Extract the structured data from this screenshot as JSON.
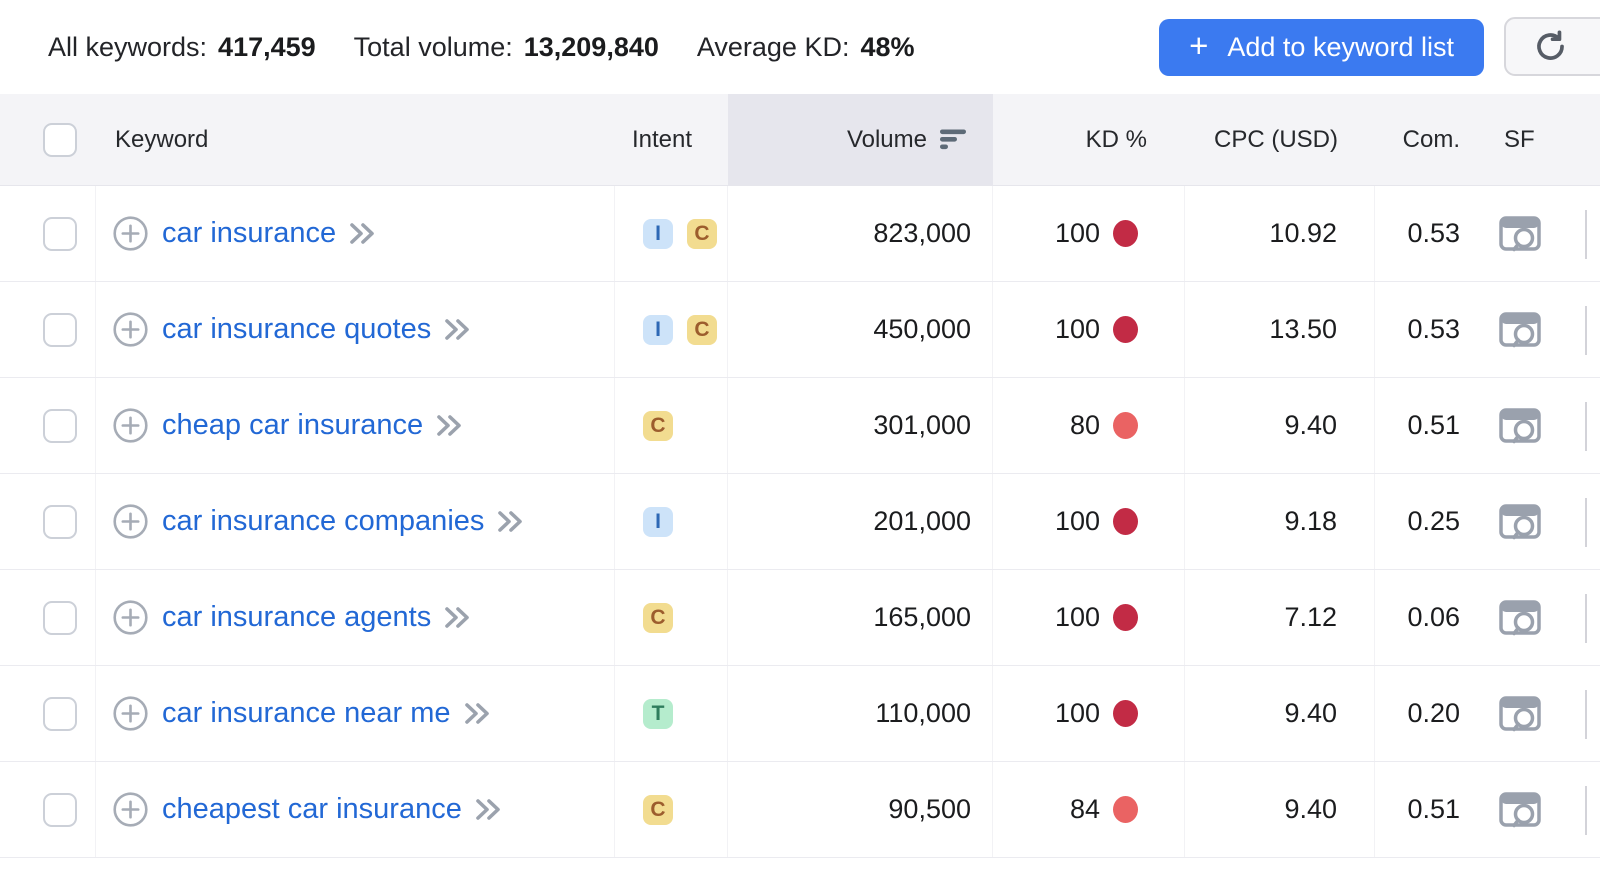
{
  "toolbar": {
    "stats": [
      {
        "label": "All keywords:",
        "value": "417,459"
      },
      {
        "label": "Total volume:",
        "value": "13,209,840"
      },
      {
        "label": "Average KD:",
        "value": "48%"
      }
    ],
    "add_button": {
      "plus": "+",
      "label": "Add to keyword list"
    },
    "refresh_button": {
      "icon": "refresh-icon"
    }
  },
  "table": {
    "columns": [
      "Keyword",
      "Intent",
      "Volume",
      "KD %",
      "CPC (USD)",
      "Com.",
      "SF"
    ],
    "sorted_column": "Volume",
    "sort_direction": "descending",
    "rows": [
      {
        "keyword": "car insurance",
        "intents": [
          "I",
          "C"
        ],
        "volume": "823,000",
        "kd": "100",
        "kd_level": "very_hard",
        "cpc": "10.92",
        "com": "0.53"
      },
      {
        "keyword": "car insurance quotes",
        "intents": [
          "I",
          "C"
        ],
        "volume": "450,000",
        "kd": "100",
        "kd_level": "very_hard",
        "cpc": "13.50",
        "com": "0.53"
      },
      {
        "keyword": "cheap car insurance",
        "intents": [
          "C"
        ],
        "volume": "301,000",
        "kd": "80",
        "kd_level": "hard",
        "cpc": "9.40",
        "com": "0.51"
      },
      {
        "keyword": "car insurance companies",
        "intents": [
          "I"
        ],
        "volume": "201,000",
        "kd": "100",
        "kd_level": "very_hard",
        "cpc": "9.18",
        "com": "0.25"
      },
      {
        "keyword": "car insurance agents",
        "intents": [
          "C"
        ],
        "volume": "165,000",
        "kd": "100",
        "kd_level": "very_hard",
        "cpc": "7.12",
        "com": "0.06"
      },
      {
        "keyword": "car insurance near me",
        "intents": [
          "T"
        ],
        "volume": "110,000",
        "kd": "100",
        "kd_level": "very_hard",
        "cpc": "9.40",
        "com": "0.20"
      },
      {
        "keyword": "cheapest car insurance",
        "intents": [
          "C"
        ],
        "volume": "90,500",
        "kd": "84",
        "kd_level": "hard",
        "cpc": "9.40",
        "com": "0.51"
      }
    ]
  },
  "theme": {
    "accent_blue": "#3b7af0",
    "link_blue": "#2268d5",
    "kd_very_hard": "#c22b45",
    "kd_hard": "#ea6363",
    "intent": {
      "I": {
        "bg": "#cde3f9",
        "fg": "#2d68b5"
      },
      "C": {
        "bg": "#f2dc90",
        "fg": "#9c5d2d"
      },
      "T": {
        "bg": "#b5eccd",
        "fg": "#2f7d5d"
      }
    }
  }
}
